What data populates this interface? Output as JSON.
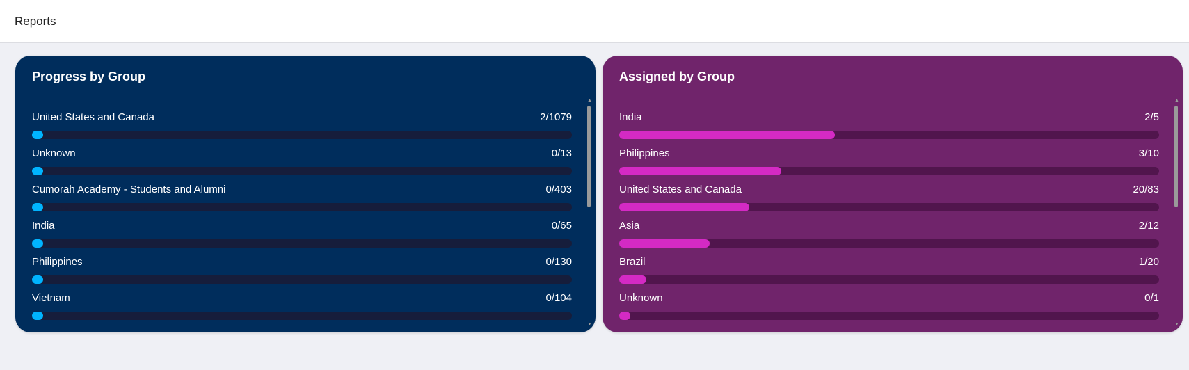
{
  "header": {
    "title": "Reports"
  },
  "cards": [
    {
      "title": "Progress by Group",
      "color": "#002d5c",
      "bar_color": "#00b4ff",
      "items": [
        {
          "label": "United States and Canada",
          "value": "2/1079",
          "fraction": 0.0019
        },
        {
          "label": "Unknown",
          "value": "0/13",
          "fraction": 0
        },
        {
          "label": "Cumorah Academy - Students and Alumni",
          "value": "0/403",
          "fraction": 0
        },
        {
          "label": "India",
          "value": "0/65",
          "fraction": 0
        },
        {
          "label": "Philippines",
          "value": "0/130",
          "fraction": 0
        },
        {
          "label": "Vietnam",
          "value": "0/104",
          "fraction": 0
        }
      ]
    },
    {
      "title": "Assigned by Group",
      "color": "#70246b",
      "bar_color": "#d42ac4",
      "items": [
        {
          "label": "India",
          "value": "2/5",
          "fraction": 0.4
        },
        {
          "label": "Philippines",
          "value": "3/10",
          "fraction": 0.3
        },
        {
          "label": "United States and Canada",
          "value": "20/83",
          "fraction": 0.241
        },
        {
          "label": "Asia",
          "value": "2/12",
          "fraction": 0.167
        },
        {
          "label": "Brazil",
          "value": "1/20",
          "fraction": 0.05
        },
        {
          "label": "Unknown",
          "value": "0/1",
          "fraction": 0
        }
      ]
    }
  ]
}
